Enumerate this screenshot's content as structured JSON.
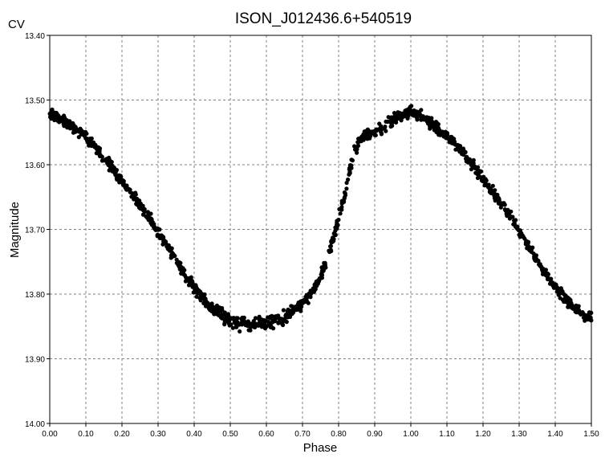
{
  "chart_data": {
    "type": "scatter",
    "title": "ISON_J012436.6+540519",
    "band_label": "CV",
    "xlabel": "Phase",
    "ylabel": "Magnitude",
    "xlim": [
      0.0,
      1.5
    ],
    "ylim": [
      13.4,
      14.0
    ],
    "y_inverted": true,
    "grid": true,
    "legend": "none",
    "marker_color": "#000000",
    "x_ticks": [
      "0.00",
      "0.10",
      "0.20",
      "0.30",
      "0.40",
      "0.50",
      "0.60",
      "0.70",
      "0.80",
      "0.90",
      "1.00",
      "1.10",
      "1.20",
      "1.30",
      "1.40",
      "1.50"
    ],
    "y_ticks": [
      "13.40",
      "13.50",
      "13.60",
      "13.70",
      "13.80",
      "13.90",
      "14.00"
    ],
    "light_curve": [
      [
        0.0,
        13.521
      ],
      [
        0.05,
        13.535
      ],
      [
        0.1,
        13.557
      ],
      [
        0.15,
        13.588
      ],
      [
        0.2,
        13.625
      ],
      [
        0.25,
        13.662
      ],
      [
        0.3,
        13.703
      ],
      [
        0.35,
        13.748
      ],
      [
        0.4,
        13.79
      ],
      [
        0.45,
        13.822
      ],
      [
        0.5,
        13.84
      ],
      [
        0.55,
        13.848
      ],
      [
        0.6,
        13.845
      ],
      [
        0.65,
        13.835
      ],
      [
        0.7,
        13.814
      ],
      [
        0.73,
        13.796
      ],
      [
        0.76,
        13.76
      ],
      [
        0.79,
        13.705
      ],
      [
        0.82,
        13.64
      ],
      [
        0.84,
        13.585
      ],
      [
        0.86,
        13.56
      ],
      [
        0.88,
        13.552
      ],
      [
        0.9,
        13.55
      ],
      [
        0.92,
        13.545
      ],
      [
        0.95,
        13.53
      ],
      [
        1.0,
        13.517
      ],
      [
        1.05,
        13.533
      ],
      [
        1.1,
        13.555
      ],
      [
        1.15,
        13.585
      ],
      [
        1.2,
        13.622
      ],
      [
        1.25,
        13.66
      ],
      [
        1.3,
        13.702
      ],
      [
        1.35,
        13.748
      ],
      [
        1.4,
        13.79
      ],
      [
        1.45,
        13.82
      ],
      [
        1.5,
        13.838
      ]
    ]
  }
}
